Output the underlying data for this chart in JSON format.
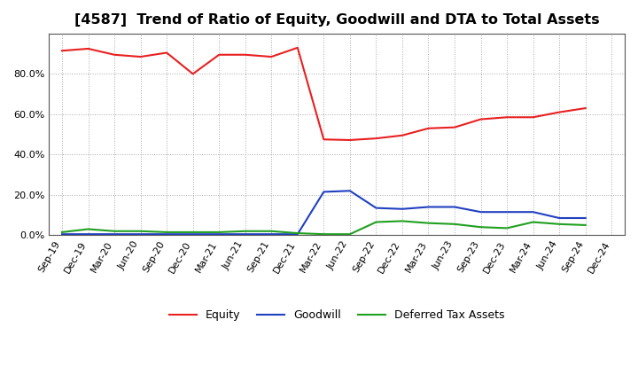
{
  "title": "[4587]  Trend of Ratio of Equity, Goodwill and DTA to Total Assets",
  "x_labels": [
    "Sep-19",
    "Dec-19",
    "Mar-20",
    "Jun-20",
    "Sep-20",
    "Dec-20",
    "Mar-21",
    "Jun-21",
    "Sep-21",
    "Dec-21",
    "Mar-22",
    "Jun-22",
    "Sep-22",
    "Dec-22",
    "Mar-23",
    "Jun-23",
    "Sep-23",
    "Dec-23",
    "Mar-24",
    "Jun-24",
    "Sep-24",
    "Dec-24"
  ],
  "equity": [
    0.915,
    0.925,
    0.895,
    0.885,
    0.905,
    0.8,
    0.895,
    0.895,
    0.885,
    0.93,
    0.475,
    0.472,
    0.48,
    0.495,
    0.53,
    0.535,
    0.575,
    0.585,
    0.585,
    0.61,
    0.63,
    null
  ],
  "goodwill": [
    0.005,
    0.005,
    0.005,
    0.005,
    0.005,
    0.005,
    0.005,
    0.005,
    0.005,
    0.005,
    0.215,
    0.22,
    0.135,
    0.13,
    0.14,
    0.14,
    0.115,
    0.115,
    0.115,
    0.085,
    0.085,
    null
  ],
  "dta": [
    0.015,
    0.03,
    0.02,
    0.02,
    0.015,
    0.015,
    0.015,
    0.02,
    0.02,
    0.01,
    0.005,
    0.005,
    0.065,
    0.07,
    0.06,
    0.055,
    0.04,
    0.035,
    0.065,
    0.055,
    0.05,
    null
  ],
  "equity_color": "#e82020",
  "goodwill_color": "#2040c0",
  "dta_color": "#20a020",
  "ylim": [
    0.0,
    0.999
  ],
  "yticks": [
    0.0,
    0.2,
    0.4,
    0.6,
    0.8
  ],
  "background_color": "#ffffff",
  "plot_bg_color": "#ffffff",
  "grid_color": "#aaaaaa",
  "title_fontsize": 11.5,
  "legend_fontsize": 9,
  "tick_fontsize": 8,
  "linewidth": 1.5
}
